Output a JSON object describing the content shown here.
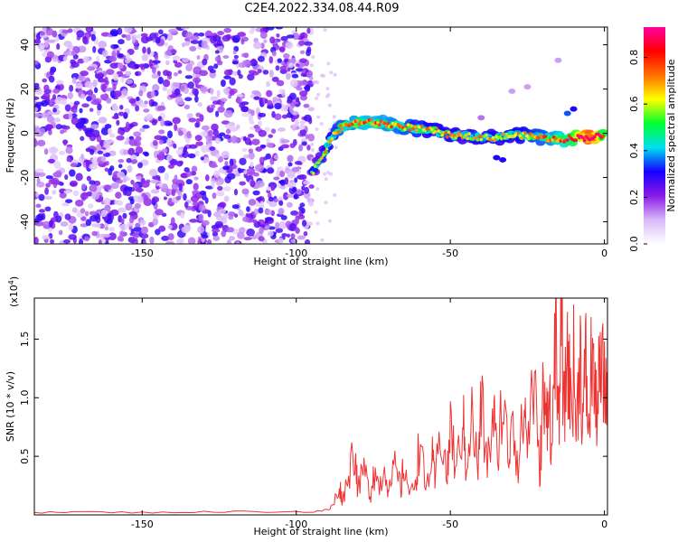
{
  "page_title": "C2E4.2022.334.08.44.R09",
  "chart_data": [
    {
      "type": "scatter",
      "title": "C2E4.2022.334.08.44.R09",
      "xlabel": "Height of straight line (km)",
      "ylabel": "Frequency (Hz)",
      "xlim": [
        -185,
        1
      ],
      "ylim": [
        -50,
        48
      ],
      "xticks": [
        -150,
        -100,
        -50,
        0
      ],
      "yticks": [
        -40,
        -20,
        0,
        20,
        40
      ],
      "grid": false,
      "noise_region": {
        "x_from": -185,
        "x_to": -95,
        "typical_amplitude": 0.2
      },
      "trace": {
        "x": [
          -95,
          -92,
          -89,
          -86,
          -83,
          -80,
          -75,
          -70,
          -65,
          -60,
          -55,
          -50,
          -45,
          -40,
          -35,
          -30,
          -25,
          -20,
          -15,
          -10,
          -5,
          0
        ],
        "frequency": [
          -18,
          -12,
          -3,
          2,
          4,
          5,
          5,
          4,
          3,
          2,
          1,
          -1,
          -1,
          -2,
          -2,
          -1,
          -1,
          -2,
          -3,
          -2,
          -2,
          -1
        ],
        "amplitude": [
          0.2,
          0.25,
          0.3,
          0.35,
          0.35,
          0.4,
          0.4,
          0.38,
          0.35,
          0.32,
          0.3,
          0.3,
          0.28,
          0.3,
          0.3,
          0.3,
          0.32,
          0.35,
          0.4,
          0.5,
          0.75,
          0.5
        ]
      },
      "colorbar": {
        "label": "Normalized spectral amplitude",
        "range": [
          0,
          0.93
        ],
        "ticks": [
          0.0,
          0.2,
          0.4,
          0.6,
          0.8
        ],
        "tick_labels": [
          "0.0",
          "0.2",
          "0.4",
          "0.6",
          "0.8"
        ],
        "colors": [
          "#ffffff",
          "#d8b8f8",
          "#8a1ae8",
          "#1400ff",
          "#00e0f0",
          "#00ff30",
          "#ffff00",
          "#ff7000",
          "#ff0000",
          "#ff00a0"
        ]
      }
    },
    {
      "type": "line",
      "xlabel": "Height of straight line (km)",
      "ylabel": "SNR (10 * v/v)",
      "y_multiplier": "(x10",
      "y_multiplier_exp": "4",
      "y_multiplier_close": ")",
      "xlim": [
        -185,
        1
      ],
      "ylim": [
        0,
        18500
      ],
      "xticks": [
        -150,
        -100,
        -50,
        0
      ],
      "yticks": [
        5000,
        10000,
        15000
      ],
      "ytick_labels": [
        "0.5",
        "1.0",
        "1.5"
      ],
      "color": "#ee3333",
      "series": [
        {
          "x": [
            -185,
            -170,
            -150,
            -130,
            -110,
            -95,
            -90,
            -88,
            -86,
            -85,
            -83,
            -81,
            -80,
            -78,
            -76,
            -75,
            -73,
            -71,
            -70,
            -68,
            -66,
            -65,
            -63,
            -61,
            -60,
            -58,
            -56,
            -55,
            -53,
            -51,
            -50,
            -48,
            -46,
            -45,
            -43,
            -41,
            -40,
            -38,
            -36,
            -35,
            -33,
            -31,
            -30,
            -28,
            -26,
            -25,
            -23,
            -21,
            -20,
            -19,
            -18,
            -17,
            -16,
            -15,
            -14,
            -13,
            -12,
            -11,
            -10,
            -9,
            -8,
            -7,
            -6,
            -5,
            -4,
            -3,
            -2,
            -1,
            0,
            1
          ],
          "y": [
            200,
            250,
            200,
            250,
            300,
            250,
            400,
            800,
            2500,
            1200,
            3500,
            6000,
            2000,
            4000,
            1500,
            3800,
            2500,
            4200,
            1800,
            4000,
            2200,
            4500,
            1500,
            3500,
            6500,
            2000,
            5000,
            2800,
            7500,
            3000,
            7800,
            3500,
            8500,
            4500,
            8200,
            3800,
            9500,
            4200,
            8800,
            5200,
            9800,
            4500,
            10200,
            3800,
            9500,
            6000,
            11800,
            3200,
            10200,
            7500,
            12000,
            4500,
            17200,
            6000,
            18500,
            8500,
            14500,
            9500,
            12500,
            7000,
            15000,
            8000,
            12800,
            6500,
            15000,
            9000,
            10500,
            12000,
            11000,
            10500
          ]
        }
      ]
    }
  ]
}
